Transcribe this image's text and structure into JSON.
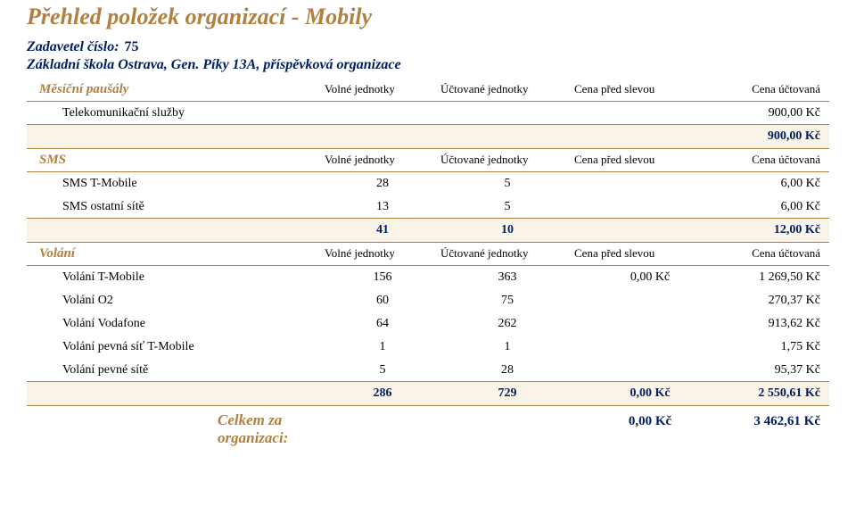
{
  "colors": {
    "accent_gold": "#b08040",
    "accent_blue": "#002060",
    "band_bg": "#faf3e8",
    "text": "#000000",
    "page_bg": "#ffffff"
  },
  "title": "Přehled položek organizací - Mobily",
  "zadavatel": {
    "label": "Zadavetel číslo:",
    "number": "75"
  },
  "school": "Základní škola Ostrava, Gen. Píky 13A, příspěvková organizace",
  "headers": {
    "volne": "Volné jednotky",
    "uctovane": "Účtované jednotky",
    "pred": "Cena před slevou",
    "uctovana": "Cena účtovaná"
  },
  "pausaly": {
    "label": "Měsíční paušály",
    "telecom_label": "Telekomunikační služby",
    "telecom_amount": "900,00 Kč",
    "total": "900,00 Kč"
  },
  "sms": {
    "label": "SMS",
    "rows": [
      {
        "name": "SMS T-Mobile",
        "vol": "28",
        "uct": "5",
        "cena": "6,00 Kč"
      },
      {
        "name": "SMS ostatní sítě",
        "vol": "13",
        "uct": "5",
        "cena": "6,00 Kč"
      }
    ],
    "total": {
      "vol": "41",
      "uct": "10",
      "cena": "12,00 Kč"
    }
  },
  "volani": {
    "label": "Volání",
    "rows": [
      {
        "name": "Volání T-Mobile",
        "vol": "156",
        "uct": "363",
        "pred": "0,00 Kč",
        "cena": "1 269,50 Kč"
      },
      {
        "name": "Volání O2",
        "vol": "60",
        "uct": "75",
        "pred": "",
        "cena": "270,37 Kč"
      },
      {
        "name": "Volání Vodafone",
        "vol": "64",
        "uct": "262",
        "pred": "",
        "cena": "913,62 Kč"
      },
      {
        "name": "Volání pevná síť T-Mobile",
        "vol": "1",
        "uct": "1",
        "pred": "",
        "cena": "1,75 Kč"
      },
      {
        "name": "Volání pevné sítě",
        "vol": "5",
        "uct": "28",
        "pred": "",
        "cena": "95,37 Kč"
      }
    ],
    "total": {
      "vol": "286",
      "uct": "729",
      "pred": "0,00 Kč",
      "cena": "2 550,61 Kč"
    }
  },
  "grand": {
    "label": "Celkem za organizaci:",
    "pred": "0,00 Kč",
    "cena": "3 462,61 Kč"
  }
}
